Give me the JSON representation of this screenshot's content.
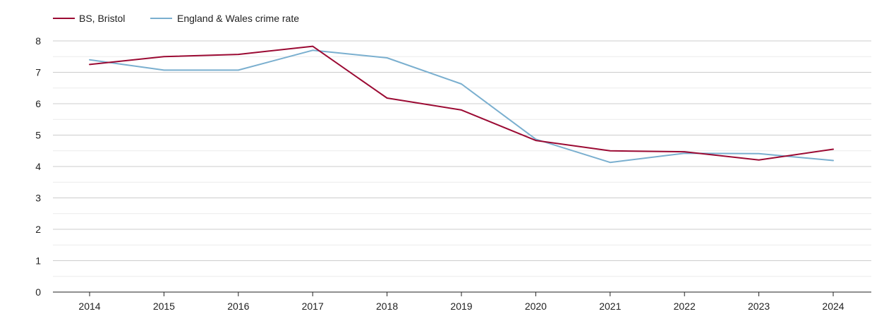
{
  "chart_data": {
    "type": "line",
    "title": "",
    "xlabel": "",
    "ylabel": "",
    "x": [
      "2014",
      "2015",
      "2016",
      "2017",
      "2018",
      "2019",
      "2020",
      "2021",
      "2022",
      "2023",
      "2024"
    ],
    "ylim": [
      0,
      8
    ],
    "yticks": [
      "0",
      "1",
      "2",
      "3",
      "4",
      "5",
      "6",
      "7",
      "8"
    ],
    "grid": true,
    "legend_position": "top-left",
    "series": [
      {
        "name": "BS, Bristol",
        "color": "#9b0a33",
        "values": [
          7.25,
          7.5,
          7.57,
          7.83,
          6.18,
          5.8,
          4.83,
          4.5,
          4.47,
          4.21,
          4.55
        ]
      },
      {
        "name": "England & Wales crime rate",
        "color": "#7aafcf",
        "values": [
          7.4,
          7.07,
          7.07,
          7.7,
          7.46,
          6.63,
          4.87,
          4.13,
          4.42,
          4.41,
          4.19
        ]
      }
    ]
  }
}
